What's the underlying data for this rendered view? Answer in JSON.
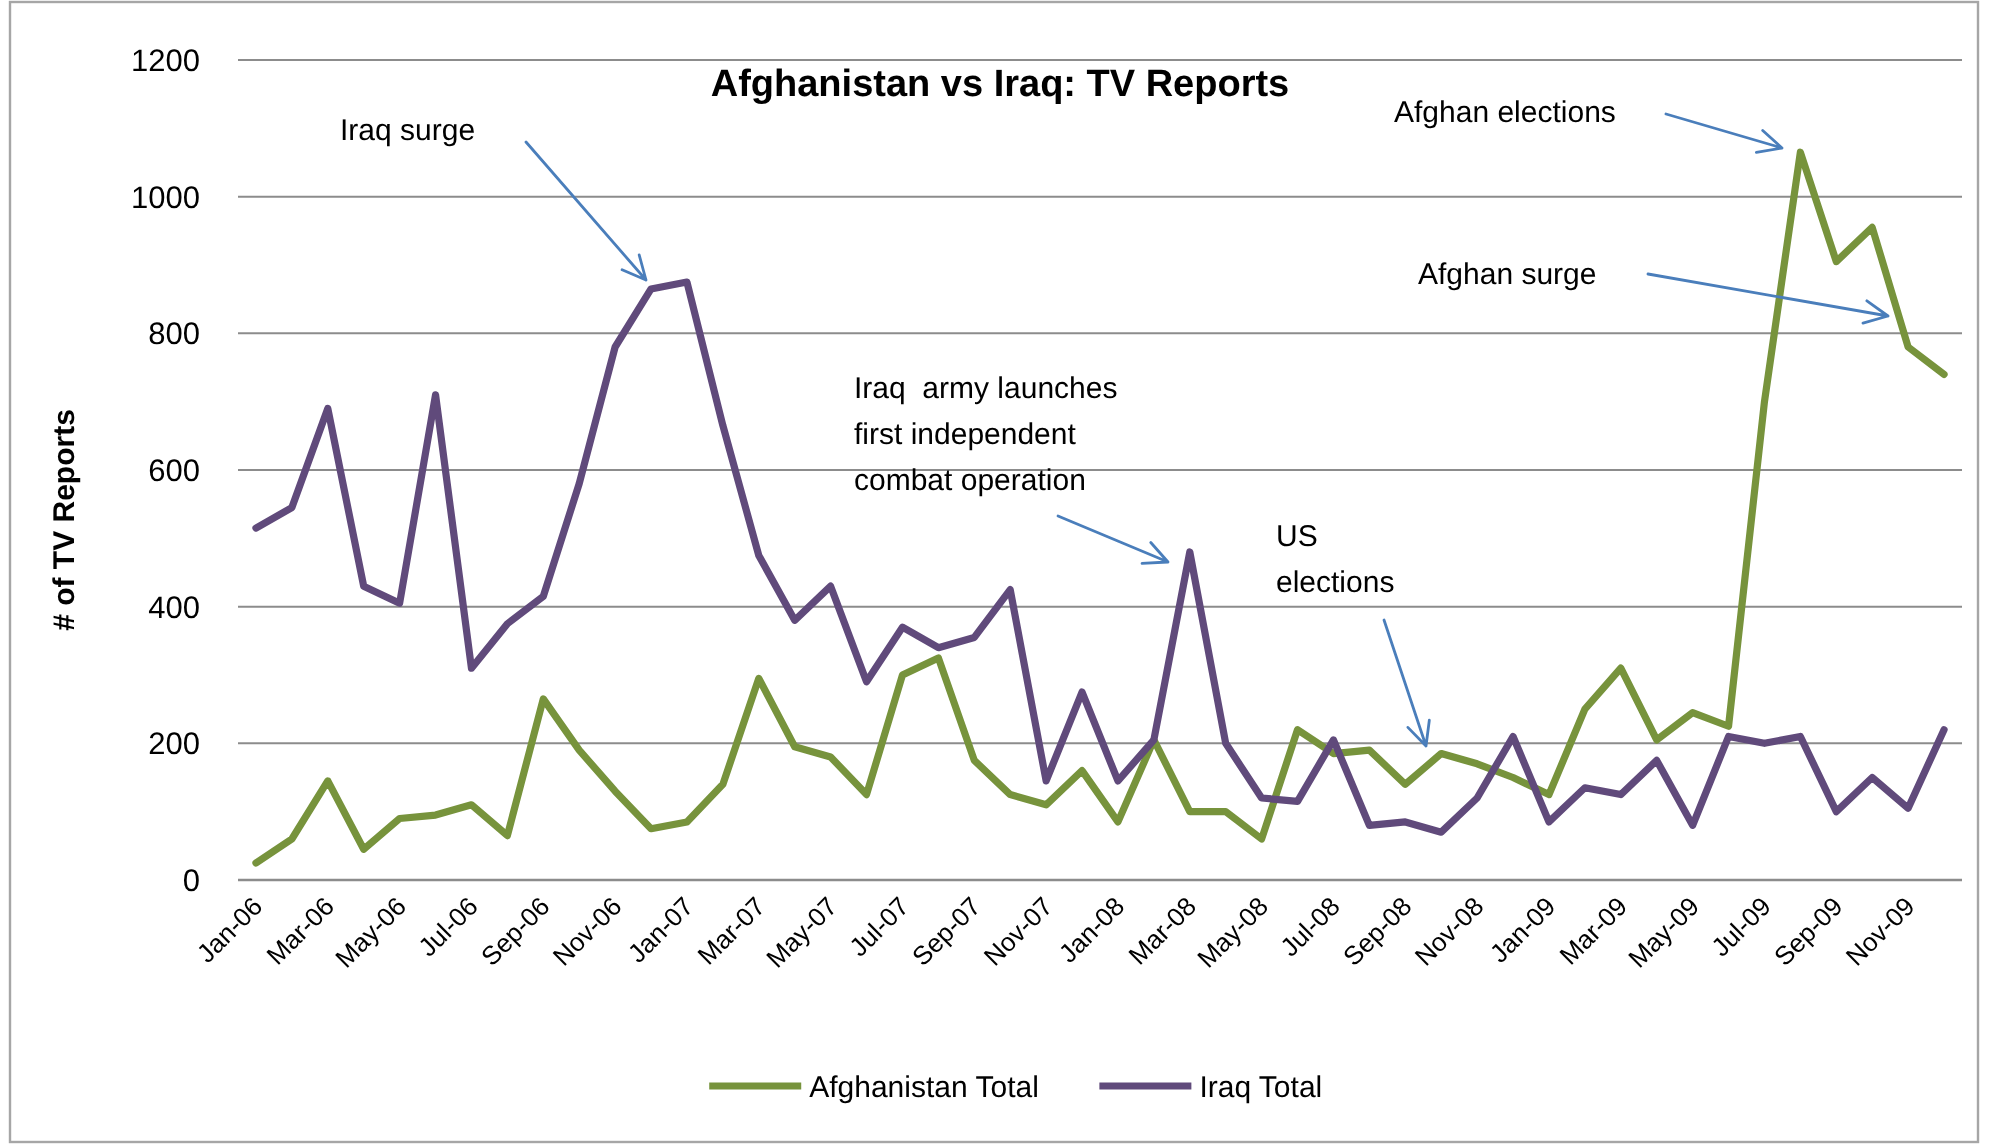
{
  "chart_data": {
    "type": "line",
    "title": "Afghanistan vs Iraq: TV Reports",
    "ylabel": "# of TV Reports",
    "categories": [
      "Jan-06",
      null,
      "Mar-06",
      null,
      "May-06",
      null,
      "Jul-06",
      null,
      "Sep-06",
      null,
      "Nov-06",
      null,
      "Jan-07",
      null,
      "Mar-07",
      null,
      "May-07",
      null,
      "Jul-07",
      null,
      "Sep-07",
      null,
      "Nov-07",
      null,
      "Jan-08",
      null,
      "Mar-08",
      null,
      "May-08",
      null,
      "Jul-08",
      null,
      "Sep-08",
      null,
      "Nov-08",
      null,
      "Jan-09",
      null,
      "Mar-09",
      null,
      "May-09",
      null,
      "Jul-09",
      null,
      "Sep-09",
      null,
      "Nov-09",
      null
    ],
    "series": [
      {
        "name": "Afghanistan Total",
        "color": "#77933c",
        "values": [
          25,
          60,
          145,
          45,
          90,
          95,
          110,
          65,
          265,
          190,
          130,
          75,
          85,
          140,
          295,
          195,
          180,
          125,
          300,
          325,
          175,
          125,
          110,
          160,
          85,
          205,
          100,
          100,
          60,
          220,
          185,
          190,
          140,
          185,
          170,
          150,
          125,
          250,
          310,
          205,
          245,
          225,
          700,
          1065,
          905,
          955,
          780,
          740
        ]
      },
      {
        "name": "Iraq Total",
        "color": "#604a7b",
        "values": [
          515,
          545,
          690,
          430,
          405,
          710,
          310,
          375,
          415,
          580,
          780,
          865,
          875,
          665,
          475,
          380,
          430,
          290,
          370,
          340,
          355,
          425,
          145,
          275,
          145,
          205,
          480,
          200,
          120,
          115,
          205,
          80,
          85,
          70,
          120,
          210,
          85,
          135,
          125,
          175,
          80,
          210,
          200,
          210,
          100,
          150,
          105,
          220
        ]
      }
    ],
    "ylim": [
      0,
      1200
    ],
    "yticks": [
      0,
      200,
      400,
      600,
      800,
      1000,
      1200
    ],
    "grid": "y",
    "legend": "bottom",
    "annotations": [
      "Iraq surge",
      "Iraq  army launches first independent combat operation",
      "US elections",
      "Afghan elections",
      "Afghan surge"
    ]
  }
}
